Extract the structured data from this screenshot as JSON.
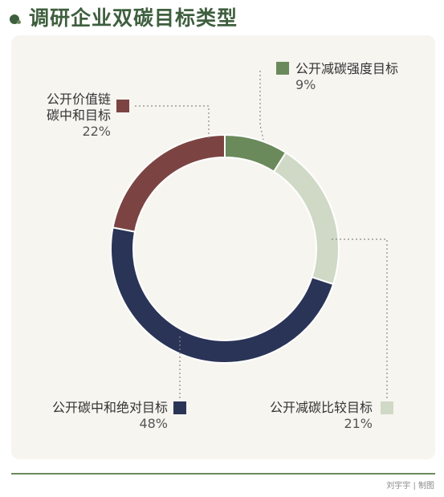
{
  "header": {
    "title": "调研企业双碳目标类型",
    "icon": "leaf-dot-icon"
  },
  "colors": {
    "title": "#3e5f3e",
    "card_bg": "#f7f5f0",
    "rule": "#6b8a5c",
    "series": [
      "#6b8a5c",
      "#cfd9c6",
      "#2a3457",
      "#7b4442"
    ],
    "leader": "#8a8a8a"
  },
  "chart_data": {
    "type": "pie",
    "donut": true,
    "title": "",
    "categories": [
      "公开减碳强度目标",
      "公开减碳比较目标",
      "公开碳中和绝对目标",
      "公开价值链碳中和目标"
    ],
    "values": [
      9,
      21,
      48,
      22
    ],
    "value_labels": [
      "9%",
      "21%",
      "48%",
      "22%"
    ],
    "label_lines": [
      [
        "公开减碳强度目标"
      ],
      [
        "公开减碳比较目标"
      ],
      [
        "公开碳中和绝对目标"
      ],
      [
        "公开价值链",
        "碳中和目标"
      ]
    ],
    "start": "12 o'clock",
    "direction": "clockwise",
    "legend": "callout labels with dotted leader lines"
  },
  "credit": "刘宇宇 | 制图"
}
